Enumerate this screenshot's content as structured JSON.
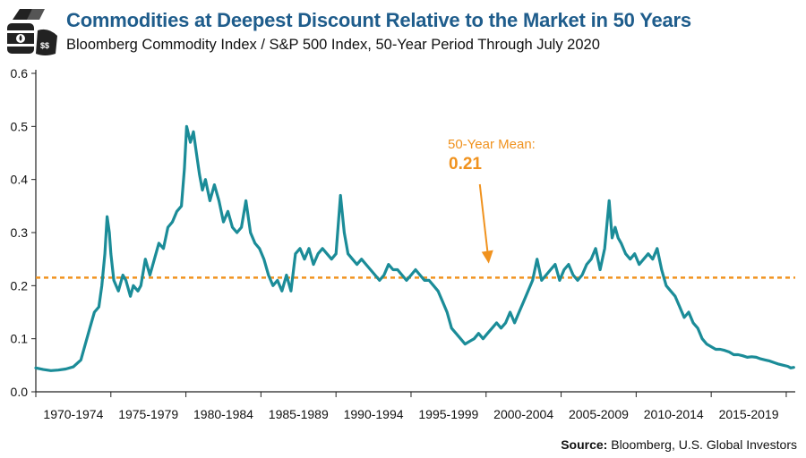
{
  "header": {
    "title": "Commodities at Deepest Discount Relative to the Market in 50 Years",
    "subtitle": "Bloomberg Commodity Index / S&P 500 Index, 50-Year Period Through July 2020"
  },
  "source": {
    "label": "Source:",
    "text": "Bloomberg, U.S. Global Investors"
  },
  "logo_icon": "commodities-icon",
  "colors": {
    "title": "#1f5d8c",
    "series": "#1b8c98",
    "mean_line": "#f0921e",
    "axis": "#222222"
  },
  "chart_data": {
    "type": "line",
    "title": "Commodities at Deepest Discount Relative to the Market in 50 Years",
    "subtitle": "Bloomberg Commodity Index / S&P 500 Index, 50-Year Period Through July 2020",
    "xlabel": "",
    "ylabel": "",
    "xlim": [
      1970.0,
      2020.6
    ],
    "ylim": [
      0,
      0.6
    ],
    "yticks": [
      0.0,
      0.1,
      0.2,
      0.3,
      0.4,
      0.5,
      0.6
    ],
    "ytick_labels": [
      "0.0",
      "0.1",
      "0.2",
      "0.3",
      "0.4",
      "0.5",
      "0.6"
    ],
    "x_categories": [
      "1970-1974",
      "1975-1979",
      "1980-1984",
      "1985-1989",
      "1990-1994",
      "1995-1999",
      "2000-2004",
      "2005-2009",
      "2010-2014",
      "2015-2019"
    ],
    "grid": false,
    "legend": "none",
    "series": [
      {
        "x": [
          1970.0,
          1970.5,
          1971.0,
          1971.5,
          1972.0,
          1972.5,
          1973.0,
          1973.3,
          1973.6,
          1973.9,
          1974.2,
          1974.4,
          1974.6,
          1974.75,
          1974.9,
          1975.0,
          1975.2,
          1975.5,
          1975.8,
          1976.0,
          1976.3,
          1976.5,
          1976.8,
          1977.0,
          1977.3,
          1977.6,
          1977.9,
          1978.2,
          1978.5,
          1978.8,
          1979.1,
          1979.4,
          1979.7,
          1979.9,
          1980.05,
          1980.3,
          1980.5,
          1980.7,
          1980.9,
          1981.1,
          1981.3,
          1981.6,
          1981.9,
          1982.2,
          1982.5,
          1982.8,
          1983.1,
          1983.4,
          1983.7,
          1984.0,
          1984.3,
          1984.6,
          1984.9,
          1985.2,
          1985.5,
          1985.8,
          1986.1,
          1986.4,
          1986.7,
          1987.0,
          1987.3,
          1987.6,
          1987.9,
          1988.2,
          1988.5,
          1988.8,
          1989.1,
          1989.4,
          1989.7,
          1990.0,
          1990.3,
          1990.55,
          1990.8,
          1991.1,
          1991.4,
          1991.7,
          1992.0,
          1992.3,
          1992.6,
          1992.9,
          1993.2,
          1993.5,
          1993.8,
          1994.1,
          1994.4,
          1994.7,
          1995.0,
          1995.3,
          1995.6,
          1995.9,
          1996.2,
          1996.5,
          1996.8,
          1997.1,
          1997.4,
          1997.7,
          1998.0,
          1998.3,
          1998.6,
          1998.9,
          1999.2,
          1999.5,
          1999.8,
          2000.1,
          2000.4,
          2000.7,
          2001.0,
          2001.3,
          2001.6,
          2001.9,
          2002.2,
          2002.5,
          2002.8,
          2003.1,
          2003.4,
          2003.7,
          2004.0,
          2004.3,
          2004.6,
          2004.9,
          2005.2,
          2005.5,
          2005.8,
          2006.1,
          2006.4,
          2006.7,
          2007.0,
          2007.3,
          2007.6,
          2007.9,
          2008.2,
          2008.4,
          2008.6,
          2008.8,
          2009.0,
          2009.3,
          2009.6,
          2009.9,
          2010.2,
          2010.5,
          2010.8,
          2011.1,
          2011.4,
          2011.7,
          2012.0,
          2012.3,
          2012.6,
          2012.9,
          2013.2,
          2013.5,
          2013.8,
          2014.1,
          2014.4,
          2014.7,
          2015.0,
          2015.3,
          2015.6,
          2015.9,
          2016.2,
          2016.5,
          2016.8,
          2017.1,
          2017.4,
          2017.7,
          2018.0,
          2018.3,
          2018.6,
          2018.9,
          2019.2,
          2019.5,
          2019.8,
          2020.1,
          2020.3,
          2020.5
        ],
        "values": [
          0.045,
          0.042,
          0.04,
          0.041,
          0.043,
          0.047,
          0.06,
          0.09,
          0.12,
          0.15,
          0.16,
          0.2,
          0.26,
          0.33,
          0.3,
          0.26,
          0.21,
          0.19,
          0.22,
          0.21,
          0.18,
          0.2,
          0.19,
          0.2,
          0.25,
          0.22,
          0.25,
          0.28,
          0.27,
          0.31,
          0.32,
          0.34,
          0.35,
          0.42,
          0.5,
          0.47,
          0.49,
          0.45,
          0.41,
          0.38,
          0.4,
          0.36,
          0.39,
          0.36,
          0.32,
          0.34,
          0.31,
          0.3,
          0.31,
          0.36,
          0.3,
          0.28,
          0.27,
          0.25,
          0.22,
          0.2,
          0.21,
          0.19,
          0.22,
          0.19,
          0.26,
          0.27,
          0.25,
          0.27,
          0.24,
          0.26,
          0.27,
          0.26,
          0.25,
          0.26,
          0.37,
          0.3,
          0.26,
          0.25,
          0.24,
          0.25,
          0.24,
          0.23,
          0.22,
          0.21,
          0.22,
          0.24,
          0.23,
          0.23,
          0.22,
          0.21,
          0.22,
          0.23,
          0.22,
          0.21,
          0.21,
          0.2,
          0.19,
          0.17,
          0.15,
          0.12,
          0.11,
          0.1,
          0.09,
          0.095,
          0.1,
          0.11,
          0.1,
          0.11,
          0.12,
          0.13,
          0.12,
          0.13,
          0.15,
          0.13,
          0.15,
          0.17,
          0.19,
          0.21,
          0.25,
          0.21,
          0.22,
          0.23,
          0.24,
          0.21,
          0.23,
          0.24,
          0.22,
          0.21,
          0.22,
          0.24,
          0.25,
          0.27,
          0.23,
          0.27,
          0.36,
          0.29,
          0.31,
          0.29,
          0.28,
          0.26,
          0.25,
          0.26,
          0.24,
          0.25,
          0.26,
          0.25,
          0.27,
          0.23,
          0.2,
          0.19,
          0.18,
          0.16,
          0.14,
          0.15,
          0.13,
          0.12,
          0.1,
          0.09,
          0.085,
          0.08,
          0.08,
          0.078,
          0.075,
          0.07,
          0.07,
          0.068,
          0.065,
          0.066,
          0.065,
          0.062,
          0.06,
          0.058,
          0.055,
          0.052,
          0.05,
          0.048,
          0.045,
          0.046
        ]
      }
    ],
    "reference_line": {
      "y": 0.215,
      "style": "dashed"
    },
    "annotations": [
      {
        "label": "50-Year Mean:",
        "value_text": "0.21",
        "points_to_x": 2000.0,
        "points_to_y": 0.245
      }
    ]
  }
}
